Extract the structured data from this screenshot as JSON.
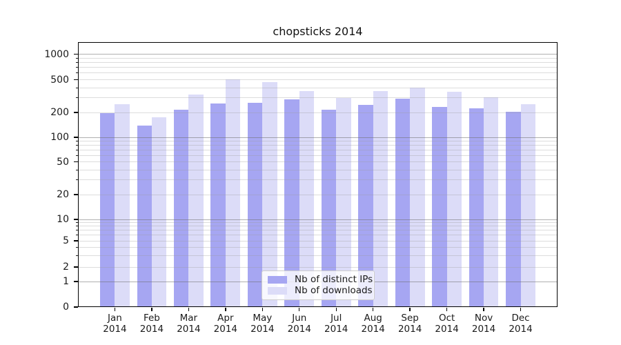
{
  "title": "chopsticks 2014",
  "colors": {
    "axis": "#000000",
    "text": "#1a1a1a",
    "grid_major": "#6e6e6e",
    "grid_minor": "#9a9a9a",
    "ips_bar": "#a6a6f2",
    "downloads_bar": "#dcdcf8"
  },
  "chart_data": {
    "type": "bar",
    "title": "chopsticks 2014",
    "categories": [
      "Jan 2014",
      "Feb 2014",
      "Mar 2014",
      "Apr 2014",
      "May 2014",
      "Jun 2014",
      "Jul 2014",
      "Aug 2014",
      "Sep 2014",
      "Oct 2014",
      "Nov 2014",
      "Dec 2014"
    ],
    "x_tick_months": [
      "Jan",
      "Feb",
      "Mar",
      "Apr",
      "May",
      "Jun",
      "Jul",
      "Aug",
      "Sep",
      "Oct",
      "Nov",
      "Dec"
    ],
    "x_tick_year": "2014",
    "series": [
      {
        "name": "Nb of distinct IPs",
        "color": "#a6a6f2",
        "values": [
          195,
          140,
          215,
          255,
          262,
          290,
          214,
          245,
          295,
          233,
          226,
          205
        ]
      },
      {
        "name": "Nb of downloads",
        "color": "#dcdcf8",
        "values": [
          253,
          174,
          330,
          505,
          468,
          365,
          298,
          365,
          400,
          355,
          307,
          253
        ]
      }
    ],
    "y_ticks": [
      0,
      1,
      2,
      5,
      10,
      20,
      50,
      100,
      200,
      500,
      1000
    ],
    "yscale": "symlog",
    "ylim": [
      0,
      1400
    ],
    "xlabel": "",
    "ylabel": "",
    "grid": true,
    "legend_position": "lower center"
  }
}
